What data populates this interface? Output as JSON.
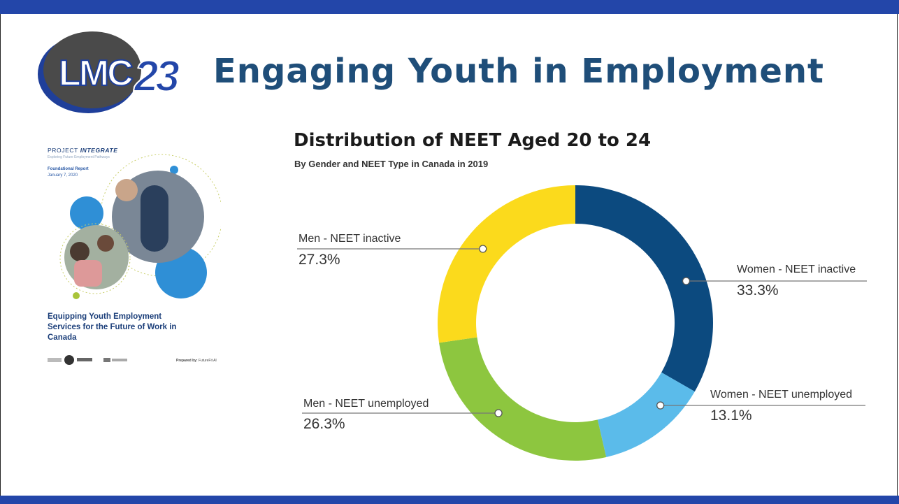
{
  "slide": {
    "title": "Engaging Youth in Employment",
    "brand_color": "#2346a9",
    "title_color": "#1f4e79"
  },
  "logo": {
    "text_lmc": "LMC",
    "text_year": "23"
  },
  "report_cover": {
    "project": "PROJECT",
    "project_name": "INTEGRATE",
    "tagline": "Exploring Future Employment Pathways",
    "report_type": "Foundational Report",
    "date": "January 7, 2020",
    "title": "Equipping Youth Employment Services for the Future of Work in Canada",
    "prepared_label": "Prepared by:",
    "prepared_by": "FutureFit AI"
  },
  "chart_data": {
    "type": "pie",
    "donut": true,
    "title": "Distribution of NEET Aged 20 to 24",
    "subtitle": "By Gender and NEET Type in Canada in 2019",
    "slices": [
      {
        "label": "Women - NEET inactive",
        "value": 33.3,
        "display": "33.3%",
        "color": "#0c4a7f"
      },
      {
        "label": "Women - NEET unemployed",
        "value": 13.1,
        "display": "13.1%",
        "color": "#5bbbea"
      },
      {
        "label": "Men - NEET unemployed",
        "value": 26.3,
        "display": "26.3%",
        "color": "#8dc63f"
      },
      {
        "label": "Men - NEET inactive",
        "value": 27.3,
        "display": "27.3%",
        "color": "#fbda1c"
      }
    ]
  }
}
